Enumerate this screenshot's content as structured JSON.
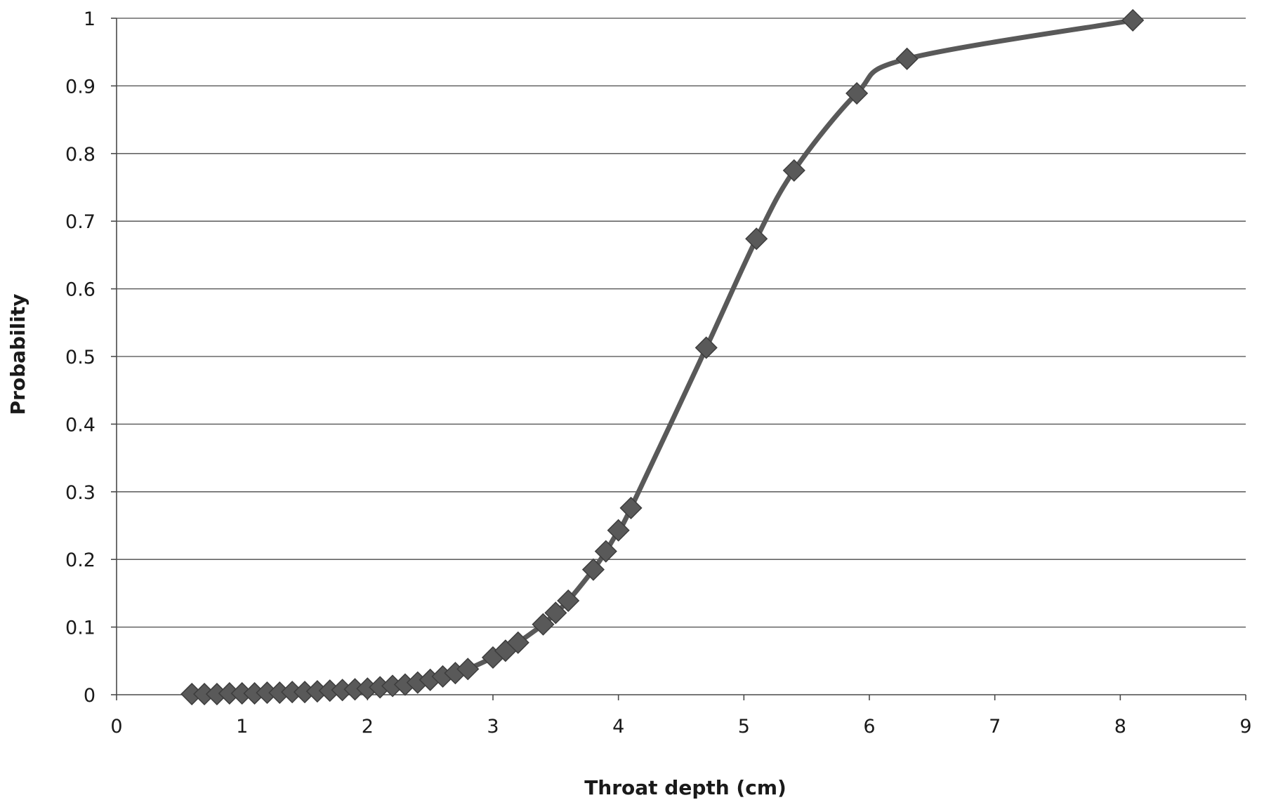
{
  "colors": {
    "series": "#595959",
    "marker_edge": "#3d3d3d",
    "grid": "#4a4a4a",
    "background": "#ffffff"
  },
  "chart_data": {
    "type": "line",
    "title": "",
    "xlabel": "Throat depth (cm)",
    "ylabel": "Probability",
    "xlim": [
      0,
      9
    ],
    "ylim": [
      0,
      1
    ],
    "x_ticks": [
      0,
      1,
      2,
      3,
      4,
      5,
      6,
      7,
      8,
      9
    ],
    "y_ticks": [
      0,
      0.1,
      0.2,
      0.3,
      0.4,
      0.5,
      0.6,
      0.7,
      0.8,
      0.9,
      1
    ],
    "x_tick_labels": [
      "0",
      "1",
      "2",
      "3",
      "4",
      "5",
      "6",
      "7",
      "8",
      "9"
    ],
    "y_tick_labels": [
      "0",
      "0.1",
      "0.2",
      "0.3",
      "0.4",
      "0.5",
      "0.6",
      "0.7",
      "0.8",
      "0.9",
      "1"
    ],
    "grid": "horizontal",
    "legend": "none",
    "marker": "diamond",
    "smooth": true,
    "series": [
      {
        "x": [
          0.6,
          0.7,
          0.8,
          0.9,
          1.0,
          1.1,
          1.2,
          1.3,
          1.4,
          1.5,
          1.6,
          1.7,
          1.8,
          1.9,
          2.0,
          2.1,
          2.2,
          2.3,
          2.4,
          2.5,
          2.6,
          2.7,
          2.8,
          3.0,
          3.1,
          3.2,
          3.4,
          3.5,
          3.6,
          3.8,
          3.9,
          4.0,
          4.1,
          4.7,
          5.1,
          5.4,
          5.9,
          6.3,
          8.1
        ],
        "y": [
          0.001,
          0.001,
          0.001,
          0.002,
          0.002,
          0.002,
          0.003,
          0.003,
          0.004,
          0.004,
          0.005,
          0.006,
          0.007,
          0.008,
          0.009,
          0.011,
          0.013,
          0.015,
          0.018,
          0.022,
          0.027,
          0.032,
          0.038,
          0.055,
          0.065,
          0.077,
          0.104,
          0.121,
          0.139,
          0.185,
          0.212,
          0.243,
          0.276,
          0.513,
          0.674,
          0.775,
          0.889,
          0.94,
          0.997
        ]
      }
    ]
  }
}
